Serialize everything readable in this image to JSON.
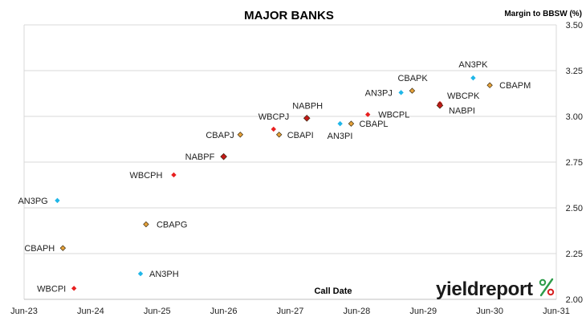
{
  "chart_data": {
    "type": "scatter",
    "title": "MAJOR BANKS",
    "ylabel": "Margin to BBSW (%)",
    "xlabel": "Call Date",
    "x_ticks": [
      "Jun-23",
      "Jun-24",
      "Jun-25",
      "Jun-26",
      "Jun-27",
      "Jun-28",
      "Jun-29",
      "Jun-30",
      "Jun-31"
    ],
    "y_ticks": [
      "2.00",
      "2.25",
      "2.50",
      "2.75",
      "3.00",
      "3.25",
      "3.50"
    ],
    "xlim": [
      "2023-06",
      "2031-06"
    ],
    "ylim": [
      2.0,
      3.5
    ],
    "grid": "horizontal",
    "y_axis_side": "right",
    "colors": {
      "ANZ": "#1fb6e8",
      "CBA": "#e8a33a",
      "WBC": "#e82020",
      "NAB": "#c41818"
    },
    "points": [
      {
        "label": "WBCPI",
        "bank": "WBC",
        "x": "2024-03",
        "y": 2.06
      },
      {
        "label": "CBAPH",
        "bank": "CBA",
        "x": "2024-01",
        "y": 2.28
      },
      {
        "label": "AN3PG",
        "bank": "ANZ",
        "x": "2023-12",
        "y": 2.54
      },
      {
        "label": "AN3PH",
        "bank": "ANZ",
        "x": "2025-03",
        "y": 2.14
      },
      {
        "label": "CBAPG",
        "bank": "CBA",
        "x": "2025-04",
        "y": 2.41
      },
      {
        "label": "WBCPH",
        "bank": "WBC",
        "x": "2025-09",
        "y": 2.68
      },
      {
        "label": "NABPF",
        "bank": "NAB",
        "x": "2026-06",
        "y": 2.78
      },
      {
        "label": "CBAPJ",
        "bank": "CBA",
        "x": "2026-09",
        "y": 2.9
      },
      {
        "label": "WBCPJ",
        "bank": "WBC",
        "x": "2027-03",
        "y": 2.93
      },
      {
        "label": "CBAPI",
        "bank": "CBA",
        "x": "2027-04",
        "y": 2.9
      },
      {
        "label": "NABPH",
        "bank": "NAB",
        "x": "2027-09",
        "y": 2.99
      },
      {
        "label": "AN3PI",
        "bank": "ANZ",
        "x": "2028-03",
        "y": 2.96
      },
      {
        "label": "CBAPL",
        "bank": "CBA",
        "x": "2028-05",
        "y": 2.96
      },
      {
        "label": "WBCPL",
        "bank": "WBC",
        "x": "2028-08",
        "y": 3.01
      },
      {
        "label": "AN3PJ",
        "bank": "ANZ",
        "x": "2029-02",
        "y": 3.13
      },
      {
        "label": "CBAPK",
        "bank": "CBA",
        "x": "2029-04",
        "y": 3.14
      },
      {
        "label": "WBCPK",
        "bank": "WBC",
        "x": "2029-09",
        "y": 3.07
      },
      {
        "label": "NABPI",
        "bank": "NAB",
        "x": "2029-09",
        "y": 3.06
      },
      {
        "label": "AN3PK",
        "bank": "ANZ",
        "x": "2030-03",
        "y": 3.21
      },
      {
        "label": "CBAPM",
        "bank": "CBA",
        "x": "2030-06",
        "y": 3.17
      }
    ]
  },
  "brand": {
    "name": "yieldreport",
    "symbol": "%"
  }
}
